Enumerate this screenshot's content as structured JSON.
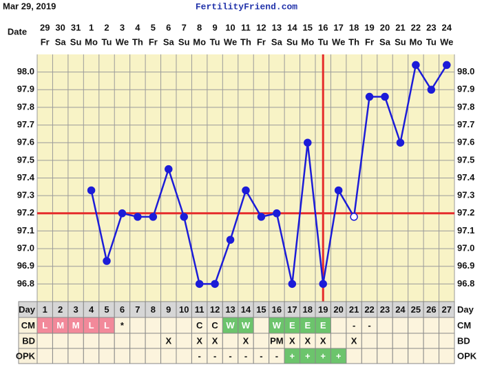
{
  "header": {
    "date": "Mar 29, 2019",
    "site": "FertilityFriend.com"
  },
  "chart_data": {
    "type": "line",
    "x_label": "Date",
    "dates": [
      29,
      30,
      31,
      1,
      2,
      3,
      4,
      5,
      6,
      7,
      8,
      9,
      10,
      11,
      12,
      13,
      14,
      15,
      16,
      17,
      18,
      19,
      20,
      21,
      22,
      23,
      24
    ],
    "weekdays": [
      "Fr",
      "Sa",
      "Su",
      "Mo",
      "Tu",
      "We",
      "Th",
      "Fr",
      "Sa",
      "Su",
      "Mo",
      "Tu",
      "We",
      "Th",
      "Fr",
      "Sa",
      "Su",
      "Mo",
      "Tu",
      "We",
      "Th",
      "Fr",
      "Sa",
      "Su",
      "Mo",
      "Tu",
      "We"
    ],
    "values": [
      null,
      null,
      null,
      97.33,
      96.93,
      97.2,
      97.18,
      97.18,
      97.45,
      97.18,
      96.8,
      96.8,
      97.05,
      97.33,
      97.18,
      97.2,
      96.8,
      97.6,
      96.8,
      97.33,
      97.18,
      97.86,
      97.86,
      97.6,
      98.04,
      97.9,
      98.04
    ],
    "color": "#1c1cd8",
    "hollow_day": 21,
    "ylim": [
      96.7,
      98.1
    ],
    "yticks": [
      {
        "value": 96.8,
        "label": "96.8"
      },
      {
        "value": 96.9,
        "label": "96.9"
      },
      {
        "value": 97,
        "label": "97.0"
      },
      97.1,
      97.2,
      97.3,
      97.4,
      97.5,
      97.6,
      97.7,
      97.8,
      97.9,
      {
        "value": 98,
        "label": "98.0"
      }
    ],
    "grid": true,
    "coverline": {
      "value": 97.2,
      "color": "#e52b2b"
    },
    "ovulation_day": 19
  },
  "table": {
    "rows": [
      {
        "label": "Day",
        "cells": [
          1,
          2,
          3,
          4,
          5,
          6,
          7,
          8,
          9,
          10,
          11,
          12,
          13,
          14,
          15,
          16,
          17,
          18,
          19,
          20,
          21,
          22,
          23,
          24,
          25,
          26,
          27
        ]
      },
      {
        "label": "CM",
        "cells": [
          "L",
          "M",
          "M",
          "L",
          "L",
          "*",
          null,
          null,
          null,
          null,
          "C",
          "C",
          "W",
          "W",
          null,
          "W",
          "E",
          "E",
          "E",
          null,
          "-",
          "-",
          null,
          null,
          null,
          null,
          null
        ]
      },
      {
        "label": "BD",
        "cells": [
          null,
          null,
          null,
          null,
          null,
          null,
          null,
          null,
          "X",
          null,
          "X",
          "X",
          null,
          "X",
          null,
          "PM",
          "X",
          "X",
          "X",
          null,
          "X",
          null,
          null,
          null,
          null,
          null,
          null
        ]
      },
      {
        "label": "OPK",
        "cells": [
          null,
          null,
          null,
          null,
          null,
          null,
          null,
          null,
          null,
          null,
          "-",
          "-",
          "-",
          "-",
          "-",
          "-",
          "+",
          "+",
          "+",
          "+",
          null,
          null,
          null,
          null,
          null,
          null,
          null
        ]
      }
    ],
    "highlight": {
      "L": "#f2899a",
      "M": "#f2899a",
      "W": "#6cc46c",
      "E": "#6cc46c",
      "+": "#6cc46c"
    }
  }
}
